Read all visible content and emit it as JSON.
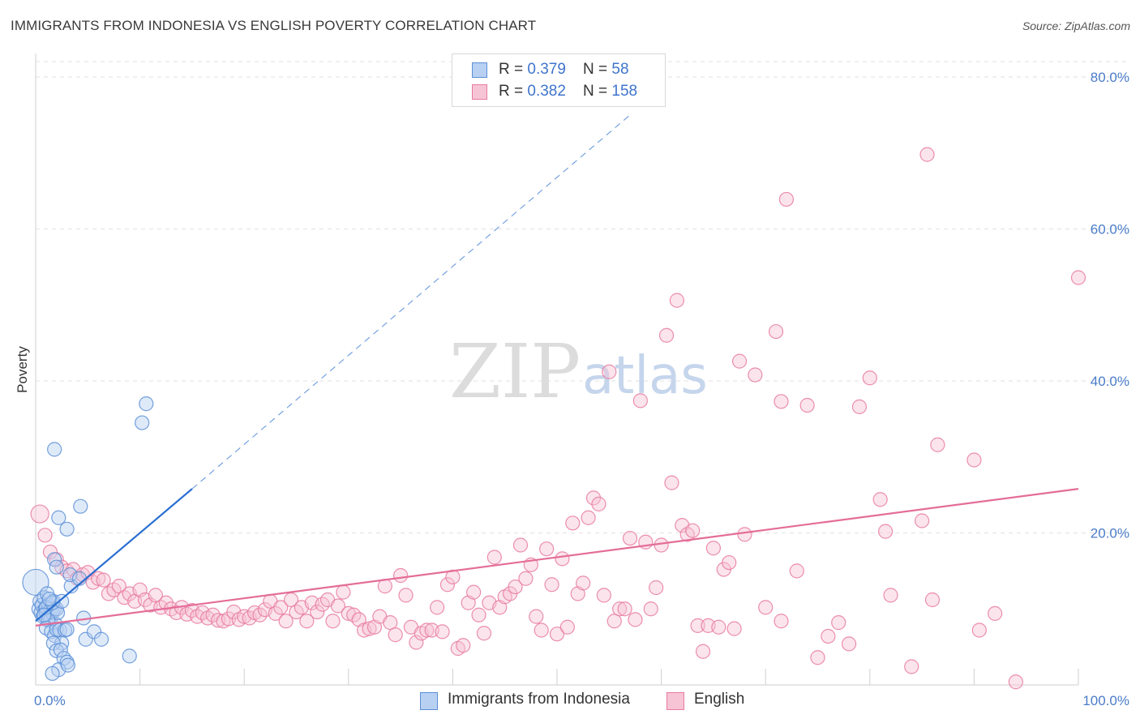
{
  "title": "IMMIGRANTS FROM INDONESIA VS ENGLISH POVERTY CORRELATION CHART",
  "source": "Source: ZipAtlas.com",
  "watermark": {
    "zip": "ZIP",
    "atlas": "atlas"
  },
  "colors": {
    "blue": "#5b8fd6",
    "blue_fill": "#b8d0f2",
    "blue_line": "#2a6fd1",
    "pink": "#e87aa0",
    "pink_fill": "#f7c4d5",
    "pink_line": "#e46d98",
    "tick_text": "#4a7cc9",
    "grid": "#e2e2e2"
  },
  "stats": [
    {
      "r_label": "R = ",
      "r_value": "0.379",
      "n_label": "N = ",
      "n_value": "58",
      "color": "blue"
    },
    {
      "r_label": "R = ",
      "r_value": "0.382",
      "n_label": "N = ",
      "n_value": "158",
      "color": "pink"
    }
  ],
  "legend": [
    {
      "label": "Immigrants from Indonesia",
      "color": "blue"
    },
    {
      "label": "English",
      "color": "pink"
    }
  ],
  "chart_data": {
    "type": "scatter",
    "title": "IMMIGRANTS FROM INDONESIA VS ENGLISH POVERTY CORRELATION CHART",
    "xlabel": "",
    "ylabel": "Poverty",
    "xlim": [
      0,
      100
    ],
    "ylim": [
      0,
      80
    ],
    "x_tick_labels": [
      "0.0%",
      "100.0%"
    ],
    "y_ticks": [
      20,
      40,
      60,
      80
    ],
    "y_tick_labels": [
      "20.0%",
      "40.0%",
      "60.0%",
      "80.0%"
    ],
    "grid": "horizontal dashed",
    "legend_position": "bottom-center",
    "series": [
      {
        "name": "Immigrants from Indonesia",
        "color": "blue",
        "r": 0.379,
        "n": 58,
        "trend": {
          "x": [
            0,
            15
          ],
          "y": [
            8.4,
            25.8
          ],
          "dashed_extension_to": [
            57,
            75
          ]
        },
        "points": [
          [
            0,
            13.5
          ],
          [
            0.3,
            10
          ],
          [
            0.4,
            11
          ],
          [
            0.5,
            9.5
          ],
          [
            0.6,
            10.5
          ],
          [
            0.7,
            9
          ],
          [
            0.8,
            11.5
          ],
          [
            0.9,
            10
          ],
          [
            1.0,
            9.5
          ],
          [
            1.1,
            12
          ],
          [
            1.2,
            10.5
          ],
          [
            1.3,
            9
          ],
          [
            1.4,
            8.5
          ],
          [
            1.5,
            10
          ],
          [
            1.6,
            9.5
          ],
          [
            1.7,
            11
          ],
          [
            1.8,
            10
          ],
          [
            1.9,
            8
          ],
          [
            2.0,
            10
          ],
          [
            2.1,
            9.5
          ],
          [
            1.2,
            8.5
          ],
          [
            1.0,
            7.5
          ],
          [
            1.5,
            7
          ],
          [
            1.8,
            6.5
          ],
          [
            2.0,
            7.3
          ],
          [
            2.3,
            7.2
          ],
          [
            2.5,
            5.5
          ],
          [
            2.8,
            7.2
          ],
          [
            3.0,
            7.3
          ],
          [
            1.7,
            5.5
          ],
          [
            2.0,
            4.5
          ],
          [
            2.4,
            4.6
          ],
          [
            2.7,
            3.5
          ],
          [
            3.0,
            3
          ],
          [
            2.2,
            2
          ],
          [
            3.1,
            2.6
          ],
          [
            1.6,
            1.5
          ],
          [
            1.8,
            16.5
          ],
          [
            2.0,
            15.5
          ],
          [
            2.2,
            22
          ],
          [
            1.8,
            31
          ],
          [
            3.0,
            20.5
          ],
          [
            3.4,
            13
          ],
          [
            3.3,
            14.5
          ],
          [
            4.3,
            23.5
          ],
          [
            4.2,
            14
          ],
          [
            4.6,
            8.8
          ],
          [
            4.8,
            6
          ],
          [
            5.6,
            7
          ],
          [
            6.3,
            6
          ],
          [
            9.0,
            3.8
          ],
          [
            10.2,
            34.5
          ],
          [
            10.6,
            37
          ],
          [
            1.0,
            10.2
          ],
          [
            1.6,
            10.8
          ],
          [
            2.5,
            11
          ],
          [
            0.8,
            9.2
          ],
          [
            1.3,
            11.3
          ]
        ]
      },
      {
        "name": "English",
        "color": "pink",
        "r": 0.382,
        "n": 158,
        "trend": {
          "x": [
            0,
            100
          ],
          "y": [
            7.8,
            25.8
          ]
        },
        "points": [
          [
            0.4,
            22.5
          ],
          [
            0.9,
            19.7
          ],
          [
            1.4,
            17.5
          ],
          [
            2.0,
            16.5
          ],
          [
            2.5,
            15.5
          ],
          [
            3.0,
            15
          ],
          [
            3.6,
            15.2
          ],
          [
            4.0,
            14
          ],
          [
            4.5,
            14.5
          ],
          [
            5.0,
            14.8
          ],
          [
            5.5,
            13.5
          ],
          [
            6.0,
            14
          ],
          [
            6.5,
            13.8
          ],
          [
            7.0,
            12
          ],
          [
            7.5,
            12.5
          ],
          [
            8.0,
            13
          ],
          [
            8.5,
            11.5
          ],
          [
            9.0,
            12
          ],
          [
            9.5,
            11
          ],
          [
            10,
            12.5
          ],
          [
            10.5,
            11.2
          ],
          [
            11,
            10.5
          ],
          [
            11.5,
            11.8
          ],
          [
            12,
            10.2
          ],
          [
            12.5,
            10.8
          ],
          [
            13,
            10
          ],
          [
            13.5,
            9.5
          ],
          [
            14,
            10.2
          ],
          [
            14.5,
            9.3
          ],
          [
            15,
            9.8
          ],
          [
            15.5,
            9
          ],
          [
            16,
            9.5
          ],
          [
            16.5,
            8.8
          ],
          [
            17,
            9.2
          ],
          [
            17.5,
            8.5
          ],
          [
            18,
            8.4
          ],
          [
            18.5,
            8.7
          ],
          [
            19,
            9.6
          ],
          [
            19.5,
            8.6
          ],
          [
            20,
            9
          ],
          [
            20.5,
            8.8
          ],
          [
            21,
            9.5
          ],
          [
            21.5,
            9.2
          ],
          [
            22,
            9.9
          ],
          [
            22.5,
            11
          ],
          [
            23,
            9.4
          ],
          [
            23.5,
            10.2
          ],
          [
            24,
            8.4
          ],
          [
            24.5,
            11.2
          ],
          [
            25,
            9.6
          ],
          [
            25.5,
            10.2
          ],
          [
            26,
            8.4
          ],
          [
            26.5,
            10.8
          ],
          [
            27,
            9.6
          ],
          [
            27.5,
            10.6
          ],
          [
            28,
            11.2
          ],
          [
            28.5,
            8.4
          ],
          [
            29,
            10.4
          ],
          [
            29.5,
            12.2
          ],
          [
            30,
            9.4
          ],
          [
            30.5,
            9.2
          ],
          [
            31,
            8.6
          ],
          [
            31.5,
            7.2
          ],
          [
            32,
            7.4
          ],
          [
            32.5,
            7.6
          ],
          [
            33,
            9
          ],
          [
            33.5,
            13
          ],
          [
            34,
            8.2
          ],
          [
            34.5,
            6.6
          ],
          [
            35,
            14.4
          ],
          [
            35.5,
            11.8
          ],
          [
            36,
            7.6
          ],
          [
            36.5,
            5.6
          ],
          [
            37,
            6.8
          ],
          [
            37.5,
            7.2
          ],
          [
            38,
            7.2
          ],
          [
            38.5,
            10.2
          ],
          [
            39,
            7
          ],
          [
            39.5,
            13.2
          ],
          [
            40,
            14.2
          ],
          [
            40.5,
            4.8
          ],
          [
            41,
            5.2
          ],
          [
            41.5,
            10.8
          ],
          [
            42,
            12.2
          ],
          [
            42.5,
            9.2
          ],
          [
            43,
            6.8
          ],
          [
            43.5,
            10.8
          ],
          [
            44,
            16.8
          ],
          [
            44.5,
            10.2
          ],
          [
            45,
            11.6
          ],
          [
            45.5,
            12
          ],
          [
            46,
            12.9
          ],
          [
            46.5,
            18.4
          ],
          [
            47,
            14
          ],
          [
            47.5,
            15.8
          ],
          [
            48,
            9
          ],
          [
            48.5,
            7.2
          ],
          [
            49,
            17.9
          ],
          [
            49.5,
            13.2
          ],
          [
            50,
            6.7
          ],
          [
            50.5,
            16.6
          ],
          [
            51,
            7.6
          ],
          [
            51.5,
            21.3
          ],
          [
            52,
            12
          ],
          [
            52.5,
            13.4
          ],
          [
            53,
            22
          ],
          [
            53.5,
            24.6
          ],
          [
            54,
            23.8
          ],
          [
            54.5,
            11.8
          ],
          [
            55,
            41.2
          ],
          [
            55.5,
            8.4
          ],
          [
            56,
            10
          ],
          [
            56.5,
            10
          ],
          [
            57,
            19.3
          ],
          [
            57.5,
            8.6
          ],
          [
            58,
            37.4
          ],
          [
            58.5,
            18.8
          ],
          [
            59,
            10
          ],
          [
            59.5,
            12.8
          ],
          [
            60,
            18.4
          ],
          [
            60.5,
            46
          ],
          [
            61,
            26.6
          ],
          [
            61.5,
            50.6
          ],
          [
            62,
            21
          ],
          [
            62.5,
            19.8
          ],
          [
            63,
            20.3
          ],
          [
            63.5,
            7.8
          ],
          [
            64,
            4.4
          ],
          [
            64.5,
            7.8
          ],
          [
            65,
            18
          ],
          [
            65.5,
            7.6
          ],
          [
            66,
            15.2
          ],
          [
            66.5,
            16.1
          ],
          [
            67,
            7.4
          ],
          [
            67.5,
            42.6
          ],
          [
            68,
            19.8
          ],
          [
            69,
            40.8
          ],
          [
            70,
            10.2
          ],
          [
            71,
            46.5
          ],
          [
            71.5,
            8.4
          ],
          [
            71.5,
            37.3
          ],
          [
            72,
            63.9
          ],
          [
            73,
            15
          ],
          [
            74,
            36.8
          ],
          [
            75,
            3.6
          ],
          [
            76,
            6.4
          ],
          [
            77,
            8.2
          ],
          [
            78,
            5.4
          ],
          [
            79,
            36.6
          ],
          [
            80,
            40.4
          ],
          [
            81,
            24.4
          ],
          [
            81.5,
            20.2
          ],
          [
            82,
            11.8
          ],
          [
            84,
            2.4
          ],
          [
            85,
            21.6
          ],
          [
            85.5,
            69.8
          ],
          [
            86,
            11.2
          ],
          [
            86.5,
            31.6
          ],
          [
            90,
            29.6
          ],
          [
            90.5,
            7.2
          ],
          [
            92,
            9.4
          ],
          [
            94,
            0.4
          ],
          [
            100,
            53.6
          ]
        ]
      }
    ]
  }
}
